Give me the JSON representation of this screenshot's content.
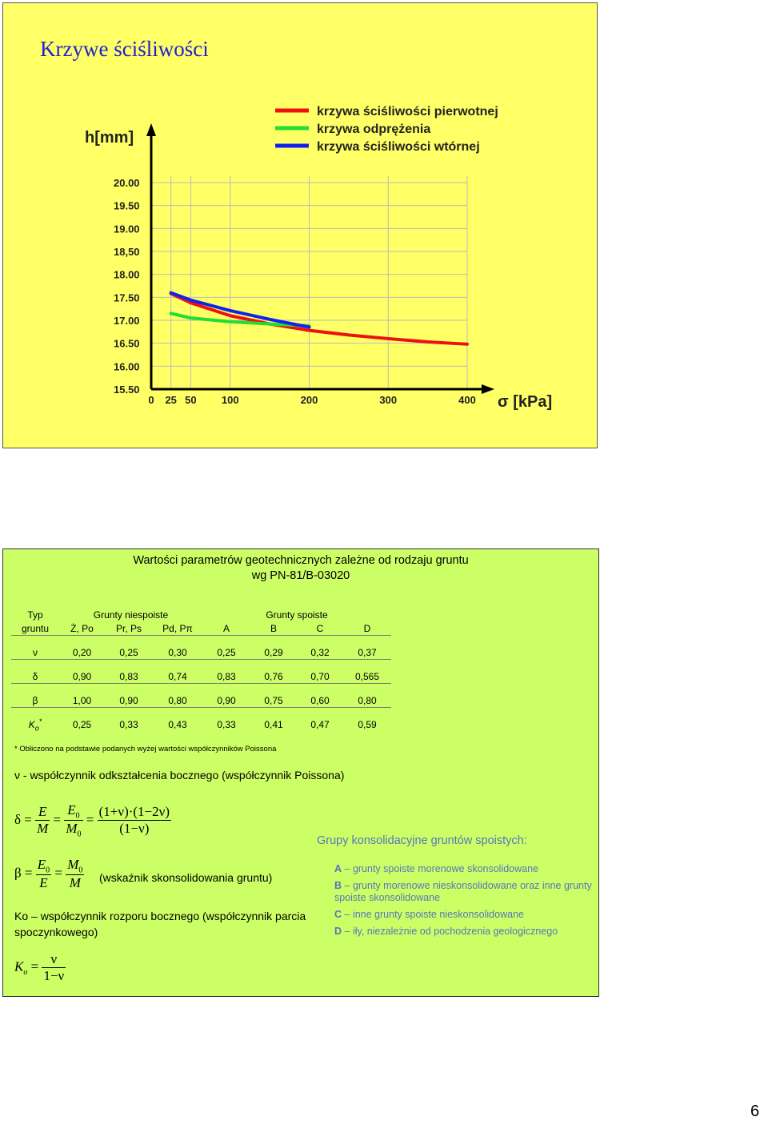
{
  "slide1": {
    "title": "Krzywe ściśliwości",
    "chart_data": {
      "type": "line",
      "ylabel": "h[mm]",
      "xlabel": "σ [kPa]",
      "y_ticks": [
        "20.00",
        "19.50",
        "19.00",
        "18,50",
        "18.00",
        "17.50",
        "17.00",
        "16.50",
        "16.00",
        "15.50"
      ],
      "x_ticks": [
        "0",
        "25",
        "50",
        "100",
        "200",
        "300",
        "400"
      ],
      "x_tick_values": [
        0,
        25,
        50,
        100,
        200,
        300,
        400
      ],
      "ylim": [
        15.5,
        20.0
      ],
      "xlim": [
        0,
        400
      ],
      "legend_position": "top-right",
      "series": [
        {
          "name": "krzywa ściśliwości pierwotnej",
          "color": "#ee1111",
          "x": [
            25,
            50,
            100,
            150,
            200,
            250,
            300,
            350,
            400
          ],
          "y": [
            17.58,
            17.38,
            17.1,
            16.92,
            16.78,
            16.68,
            16.6,
            16.53,
            16.48
          ]
        },
        {
          "name": "krzywa odprężenia",
          "color": "#22dd33",
          "x": [
            25,
            50,
            100,
            150,
            200
          ],
          "y": [
            17.15,
            17.05,
            16.97,
            16.92,
            16.88
          ]
        },
        {
          "name": "krzywa ściśliwości wtórnej",
          "color": "#1122ee",
          "x": [
            25,
            50,
            100,
            150,
            200
          ],
          "y": [
            17.6,
            17.44,
            17.21,
            17.02,
            16.85
          ]
        }
      ]
    }
  },
  "slide2": {
    "title_line1": "Wartości parametrów geotechnicznych zależne od rodzaju gruntu",
    "title_line2": "wg PN-81/B-03020",
    "table": {
      "col0_line1": "Typ",
      "col0_line2": "gruntu",
      "group_non_cohesive": "Grunty niespoiste",
      "group_cohesive": "Grunty spoiste",
      "columns": [
        "Ż, Po",
        "Pr, Ps",
        "Pd, Pπ",
        "A",
        "B",
        "C",
        "D"
      ],
      "rows": [
        {
          "symbol": "ν",
          "values": [
            "0,20",
            "0,25",
            "0,30",
            "0,25",
            "0,29",
            "0,32",
            "0,37"
          ]
        },
        {
          "symbol": "δ",
          "values": [
            "0,90",
            "0,83",
            "0,74",
            "0,83",
            "0,76",
            "0,70",
            "0,565"
          ]
        },
        {
          "symbol": "β",
          "values": [
            "1,00",
            "0,90",
            "0,80",
            "0,90",
            "0,75",
            "0,60",
            "0,80"
          ]
        },
        {
          "symbol": "Ko*",
          "values": [
            "0,25",
            "0,33",
            "0,43",
            "0,33",
            "0,41",
            "0,47",
            "0,59"
          ]
        }
      ]
    },
    "footnote": "* Obliczono na podstawie podanych wyżej wartości współczynników Poissona",
    "nu_definition": "ν - współczynnik odkształcenia bocznego (współczynnik Poissona)",
    "beta_note": "(wskaźnik skonsolidowania gruntu)",
    "ko_definition": "Ko – współczynnik rozporu bocznego (współczynnik parcia spoczynkowego)",
    "groups_title": "Grupy konsolidacyjne gruntów spoistych:",
    "groups": [
      {
        "letter": "A",
        "text": "– grunty spoiste morenowe skonsolidowane"
      },
      {
        "letter": "B",
        "text": "– grunty morenowe nieskonsolidowane oraz inne grunty spoiste skonsolidowane"
      },
      {
        "letter": "C",
        "text": "– inne grunty spoiste nieskonsolidowane"
      },
      {
        "letter": "D",
        "text": "– iły, niezależnie od pochodzenia geologicznego"
      }
    ]
  },
  "page_number": "6"
}
